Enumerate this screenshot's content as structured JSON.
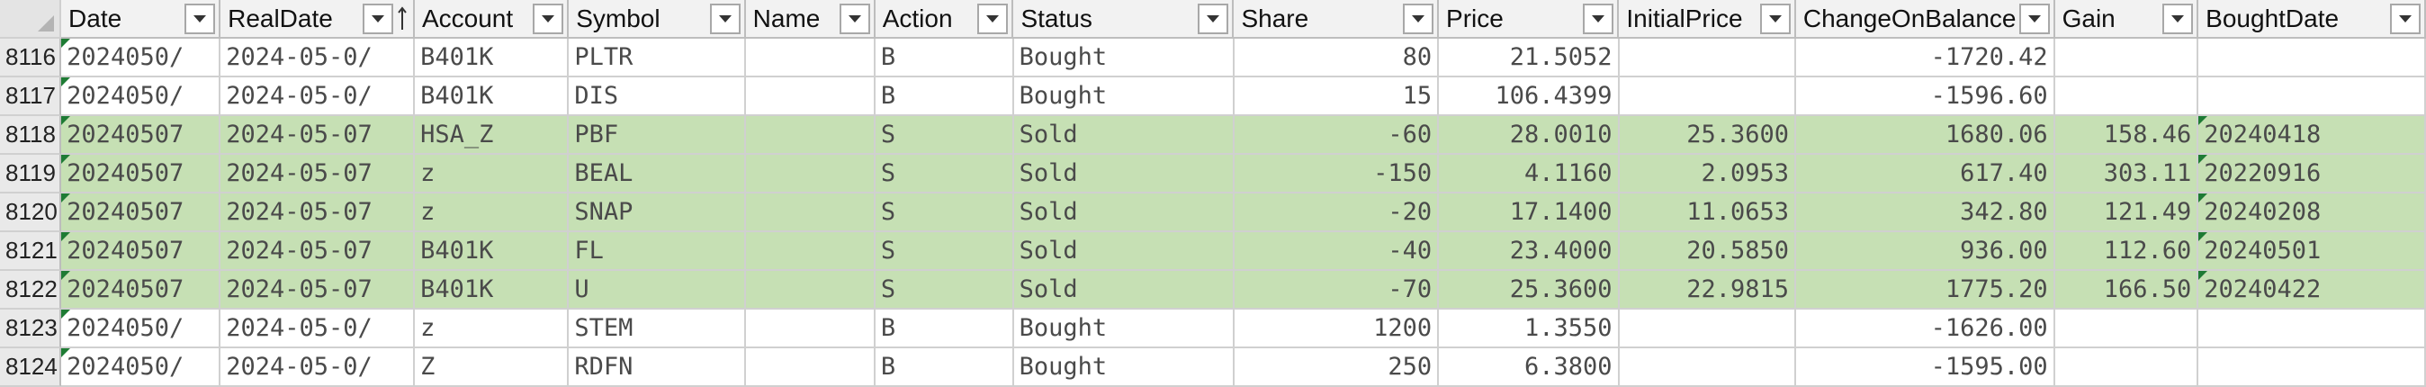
{
  "columns": [
    "Date",
    "RealDate",
    "Account",
    "Symbol",
    "Name",
    "Action",
    "Status",
    "Share",
    "Price",
    "InitialPrice",
    "ChangeOnBalance",
    "Gain",
    "BoughtDate"
  ],
  "rows": [
    {
      "num": "8116",
      "sold": false,
      "cells": [
        "2024050/",
        "2024-05-0/",
        "B401K",
        "PLTR",
        "",
        "B",
        "Bought",
        "80",
        "21.5052",
        "",
        "-1720.42",
        "",
        ""
      ]
    },
    {
      "num": "8117",
      "sold": false,
      "cells": [
        "2024050/",
        "2024-05-0/",
        "B401K",
        "DIS",
        "",
        "B",
        "Bought",
        "15",
        "106.4399",
        "",
        "-1596.60",
        "",
        ""
      ]
    },
    {
      "num": "8118",
      "sold": true,
      "cells": [
        "20240507",
        "2024-05-07",
        "HSA_Z",
        "PBF",
        "",
        "S",
        "Sold",
        "-60",
        "28.0010",
        "25.3600",
        "1680.06",
        "158.46",
        "20240418"
      ]
    },
    {
      "num": "8119",
      "sold": true,
      "cells": [
        "20240507",
        "2024-05-07",
        "z",
        "BEAL",
        "",
        "S",
        "Sold",
        "-150",
        "4.1160",
        "2.0953",
        "617.40",
        "303.11",
        "20220916"
      ]
    },
    {
      "num": "8120",
      "sold": true,
      "cells": [
        "20240507",
        "2024-05-07",
        "z",
        "SNAP",
        "",
        "S",
        "Sold",
        "-20",
        "17.1400",
        "11.0653",
        "342.80",
        "121.49",
        "20240208"
      ]
    },
    {
      "num": "8121",
      "sold": true,
      "cells": [
        "20240507",
        "2024-05-07",
        "B401K",
        "FL",
        "",
        "S",
        "Sold",
        "-40",
        "23.4000",
        "20.5850",
        "936.00",
        "112.60",
        "20240501"
      ]
    },
    {
      "num": "8122",
      "sold": true,
      "cells": [
        "20240507",
        "2024-05-07",
        "B401K",
        "U",
        "",
        "S",
        "Sold",
        "-70",
        "25.3600",
        "22.9815",
        "1775.20",
        "166.50",
        "20240422"
      ]
    },
    {
      "num": "8123",
      "sold": false,
      "cells": [
        "2024050/",
        "2024-05-0/",
        "z",
        "STEM",
        "",
        "B",
        "Bought",
        "1200",
        "1.3550",
        "",
        "-1626.00",
        "",
        ""
      ]
    },
    {
      "num": "8124",
      "sold": false,
      "cells": [
        "2024050/",
        "2024-05-0/",
        "Z",
        "RDFN",
        "",
        "B",
        "Bought",
        "250",
        "6.3800",
        "",
        "-1595.00",
        "",
        ""
      ]
    }
  ],
  "icons": {
    "filter_dropdown": "chevron-down-icon",
    "sort_indicator": "sort-ascending-icon",
    "error_indicator": "green-triangle-icon"
  },
  "colors": {
    "sold_row_fill": "#c6e0b4",
    "header_fill": "#f2f2f2",
    "error_triangle": "#1e7b34"
  }
}
